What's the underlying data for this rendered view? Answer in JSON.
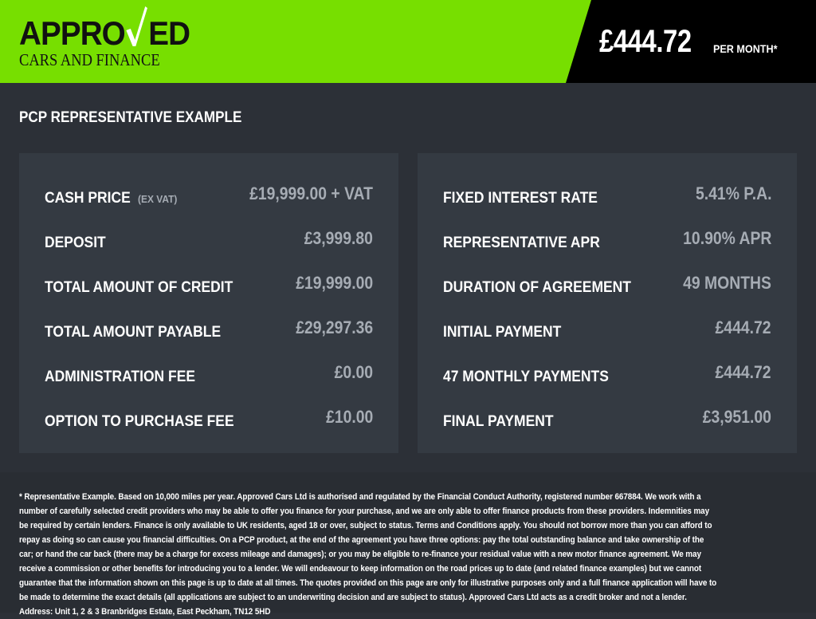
{
  "header": {
    "logo": {
      "top": "APPROVED",
      "top_before": "APPRO",
      "top_after": "ED",
      "bottom": "CARS AND FINANCE"
    },
    "price": "£444.72",
    "per_month": "PER MONTH*",
    "colors": {
      "brand_green": "#77df00",
      "price_bg": "#000000"
    }
  },
  "section_title": "PCP REPRESENTATIVE EXAMPLE",
  "left_rows": [
    {
      "label": "CASH PRICE",
      "sub": "(EX VAT)",
      "value": "£19,999.00 + VAT"
    },
    {
      "label": "DEPOSIT",
      "value": "£3,999.80"
    },
    {
      "label": "TOTAL AMOUNT OF CREDIT",
      "value": "£19,999.00"
    },
    {
      "label": "TOTAL AMOUNT PAYABLE",
      "value": "£29,297.36"
    },
    {
      "label": "ADMINISTRATION FEE",
      "value": "£0.00"
    },
    {
      "label": "OPTION TO PURCHASE FEE",
      "value": "£10.00"
    }
  ],
  "right_rows": [
    {
      "label": "FIXED INTEREST RATE",
      "value": "5.41% P.A."
    },
    {
      "label": "REPRESENTATIVE APR",
      "value": "10.90% APR"
    },
    {
      "label": "DURATION OF AGREEMENT",
      "value": "49 MONTHS"
    },
    {
      "label": "INITIAL PAYMENT",
      "value": "£444.72"
    },
    {
      "label": "47 MONTHLY PAYMENTS",
      "value": "£444.72"
    },
    {
      "label": "FINAL PAYMENT",
      "value": "£3,951.00"
    }
  ],
  "disclaimer": "* Representative Example. Based on 10,000 miles per year. Approved Cars Ltd is authorised and regulated by the Financial Conduct Authority, registered number 667884. We work with a number of carefully selected credit providers who may be able to offer you finance for your purchase, and we are only able to offer finance products from these providers. Indemnities may be required by certain lenders. Finance is only available to UK residents, aged 18 or over, subject to status. Terms and Conditions apply. You should not borrow more than you can afford to repay as doing so can cause you financial difficulties. On a PCP product, at the end of the agreement you have three options: pay the total outstanding balance and take ownership of the car; or hand the car back (there may be a charge for excess mileage and damages); or you may be eligible to re-finance your residual value with a new motor finance agreement. We may receive a commission or other benefits for introducing you to a lender. We will endeavour to keep information on the road prices up to date (and related finance examples) but we cannot guarantee that the information shown on this page is up to date at all times. The quotes provided on this page are only for illustrative purposes only and a full finance application will have to be made to determine the exact details (all applications are subject to an underwriting decision and are subject to status). Approved Cars Ltd acts as a credit broker and not a lender. Address: Unit 1, 2 & 3 Branbridges Estate, East Peckham, TN12 5HD"
}
